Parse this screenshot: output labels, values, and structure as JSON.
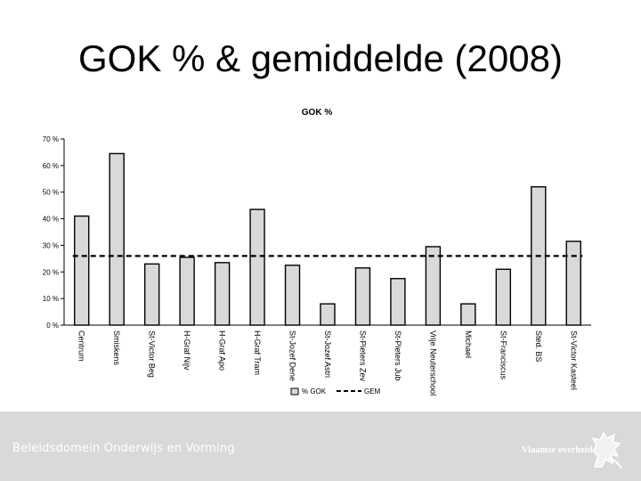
{
  "slide": {
    "title": "GOK % & gemiddelde (2008)"
  },
  "footer": {
    "left_text": "Beleidsdomein Onderwijs en Vorming",
    "right_text": "Vlaamse overheid",
    "logo_icon": "flemish-lion-icon"
  },
  "colors": {
    "bar_fill": "#d9d9d9",
    "bar_stroke": "#000000",
    "average_line": "#000000",
    "footer_band": "#d9d9d9"
  },
  "chart_data": {
    "type": "bar",
    "title": "GOK %",
    "categories": [
      "Centrum",
      "Smiskens",
      "St-Victor Beg",
      "H-Graf Nijv",
      "H-Graf Apo",
      "H-Graf Tram",
      "St-Jozef Dene",
      "St-Jozef Astri",
      "St-Pieters Zev",
      "St-Pieters Jub",
      "Vrije Neuterschool",
      "Michael",
      "St-Franciscus",
      "Sted. BS",
      "St-Victor Kasteel"
    ],
    "series": [
      {
        "name": "% GOK",
        "values": [
          41,
          64.5,
          23,
          25.5,
          23.5,
          43.5,
          22.5,
          8,
          21.5,
          17.5,
          29.5,
          8,
          21,
          52,
          31.5
        ]
      },
      {
        "name": "GEM",
        "values": [
          26,
          26,
          26,
          26,
          26,
          26,
          26,
          26,
          26,
          26,
          26,
          26,
          26,
          26,
          26
        ]
      }
    ],
    "y_ticks": [
      "0 %",
      "10 %",
      "20 %",
      "30 %",
      "40 %",
      "50 %",
      "60 %",
      "70 %"
    ],
    "ylim": [
      0,
      70
    ],
    "xlabel": "",
    "ylabel": "",
    "grid": false,
    "legend_position": "bottom-center"
  }
}
